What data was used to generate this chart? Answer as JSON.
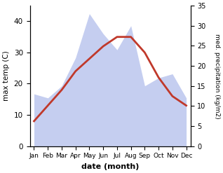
{
  "months": [
    "Jan",
    "Feb",
    "Mar",
    "Apr",
    "May",
    "Jun",
    "Jul",
    "Aug",
    "Sep",
    "Oct",
    "Nov",
    "Dec"
  ],
  "temperature": [
    8,
    13,
    18,
    24,
    28,
    32,
    35,
    35,
    30,
    22,
    16,
    13
  ],
  "precipitation": [
    13,
    12,
    15,
    22,
    33,
    28,
    24,
    30,
    15,
    17,
    18,
    12
  ],
  "temp_color": "#c0392b",
  "precip_fill_color": "#c5cef0",
  "ylim_left": [
    0,
    45
  ],
  "ylim_right": [
    0,
    35
  ],
  "yticks_left": [
    0,
    10,
    20,
    30,
    40
  ],
  "yticks_right": [
    0,
    5,
    10,
    15,
    20,
    25,
    30,
    35
  ],
  "xlabel": "date (month)",
  "ylabel_left": "max temp (C)",
  "ylabel_right": "med. precipitation (kg/m2)",
  "title": ""
}
